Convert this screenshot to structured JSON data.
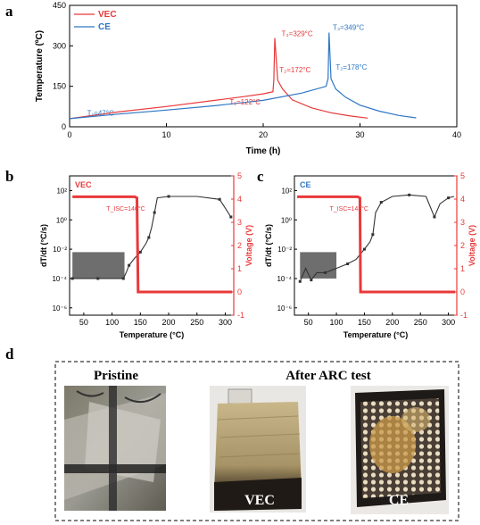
{
  "panels": {
    "a": "a",
    "b": "b",
    "c": "c",
    "d": "d"
  },
  "colors": {
    "vec": "#e8393a",
    "ce": "#2e77c4",
    "black": "#333333"
  },
  "chart_data": [
    {
      "id": "a",
      "type": "line",
      "xlabel": "Time (h)",
      "ylabel": "Temperature (ºC)",
      "xlim": [
        0,
        40
      ],
      "ylim": [
        0,
        450
      ],
      "xticks": [
        0,
        10,
        20,
        30,
        40
      ],
      "yticks": [
        0,
        150,
        300,
        450
      ],
      "legend": "top-left",
      "series": [
        {
          "name": "VEC",
          "color": "#e8393a",
          "x": [
            0,
            5,
            10,
            15,
            18,
            20,
            21.0,
            21.1,
            21.2,
            21.5,
            22,
            23,
            25,
            27,
            29,
            30.8
          ],
          "y": [
            30,
            55,
            75,
            98,
            112,
            122,
            130,
            172,
            329,
            172,
            140,
            100,
            70,
            52,
            40,
            32
          ]
        },
        {
          "name": "CE",
          "color": "#2e77c4",
          "x": [
            0,
            5,
            10,
            15,
            20,
            24,
            26.5,
            26.7,
            26.8,
            27.0,
            27.5,
            28.5,
            30,
            32,
            34,
            35.8
          ],
          "y": [
            30,
            47,
            62,
            78,
            98,
            125,
            150,
            178,
            349,
            178,
            140,
            110,
            80,
            58,
            42,
            33
          ]
        }
      ],
      "annotations": [
        {
          "text": "T₁=47°C",
          "color": "#2e77c4"
        },
        {
          "text": "T₁=122°C",
          "color": "#e8393a"
        },
        {
          "text": "T₂=172°C",
          "color": "#e8393a"
        },
        {
          "text": "T₃=329°C",
          "color": "#e8393a"
        },
        {
          "text": "T₃=349°C",
          "color": "#2e77c4"
        },
        {
          "text": "T₂=178°C",
          "color": "#2e77c4"
        }
      ]
    },
    {
      "id": "b",
      "type": "line",
      "xlabel": "Temperature (°C)",
      "ylabel": "dT/dt (°C/s)",
      "ylabel2": "Voltage (V)",
      "legend_label": "VEC",
      "xlim": [
        25,
        315
      ],
      "xticks": [
        50,
        100,
        150,
        200,
        250,
        300
      ],
      "ylog_ticks": [
        "10²",
        "10⁰",
        "10⁻²",
        "10⁻⁴",
        "10⁻⁶"
      ],
      "y2ticks": [
        5,
        4,
        3,
        2,
        1,
        0,
        -1
      ],
      "annotation": "T_ISC=146°C",
      "dTdt_series": {
        "x": [
          30,
          50,
          75,
          100,
          120,
          125,
          130,
          140,
          150,
          160,
          165,
          170,
          175,
          180,
          200,
          250,
          290,
          300,
          310
        ],
        "logy": [
          -4,
          -4,
          -4,
          -4,
          -4,
          -3.6,
          -3.1,
          -2.6,
          -2.2,
          -1.6,
          -1.2,
          -0.5,
          0.5,
          1.5,
          1.6,
          1.6,
          1.4,
          0.8,
          0.2
        ]
      },
      "voltage_series": {
        "x": [
          30,
          140,
          144,
          146,
          150,
          200,
          250,
          300,
          312
        ],
        "y": [
          4.1,
          4.1,
          4.05,
          0.0,
          0.0,
          0.0,
          0.0,
          0.0,
          0.0
        ]
      }
    },
    {
      "id": "c",
      "type": "line",
      "xlabel": "Temperature (°C)",
      "ylabel": "dT/dt (°C/s)",
      "ylabel2": "Voltage (V)",
      "legend_label": "CE",
      "xlim": [
        25,
        315
      ],
      "xticks": [
        50,
        100,
        150,
        200,
        250,
        300
      ],
      "ylog_ticks": [
        "10²",
        "10⁰",
        "10⁻²",
        "10⁻⁴",
        "10⁻⁶"
      ],
      "y2ticks": [
        5,
        4,
        3,
        2,
        1,
        0,
        -1
      ],
      "annotation": "T_ISC=143°C",
      "dTdt_series": {
        "x": [
          35,
          45,
          55,
          65,
          80,
          100,
          120,
          135,
          150,
          160,
          165,
          170,
          180,
          200,
          230,
          260,
          275,
          285,
          300,
          310
        ],
        "logy": [
          -4.2,
          -3.3,
          -4.1,
          -3.6,
          -3.6,
          -3.3,
          -3.0,
          -2.7,
          -2.0,
          -1.5,
          -1.0,
          0.5,
          1.2,
          1.6,
          1.7,
          1.6,
          0.2,
          1.1,
          1.5,
          1.6
        ]
      },
      "voltage_series": {
        "x": [
          30,
          138,
          142,
          143,
          150,
          200,
          250,
          300,
          312
        ],
        "y": [
          4.1,
          4.1,
          4.05,
          0.0,
          0.0,
          0.0,
          0.0,
          0.0,
          0.0
        ]
      }
    }
  ],
  "photos": {
    "group_title": "After ARC test",
    "items": [
      {
        "title": "Pristine",
        "tag": ""
      },
      {
        "title": "",
        "tag": "VEC"
      },
      {
        "title": "",
        "tag": "CE"
      }
    ]
  }
}
